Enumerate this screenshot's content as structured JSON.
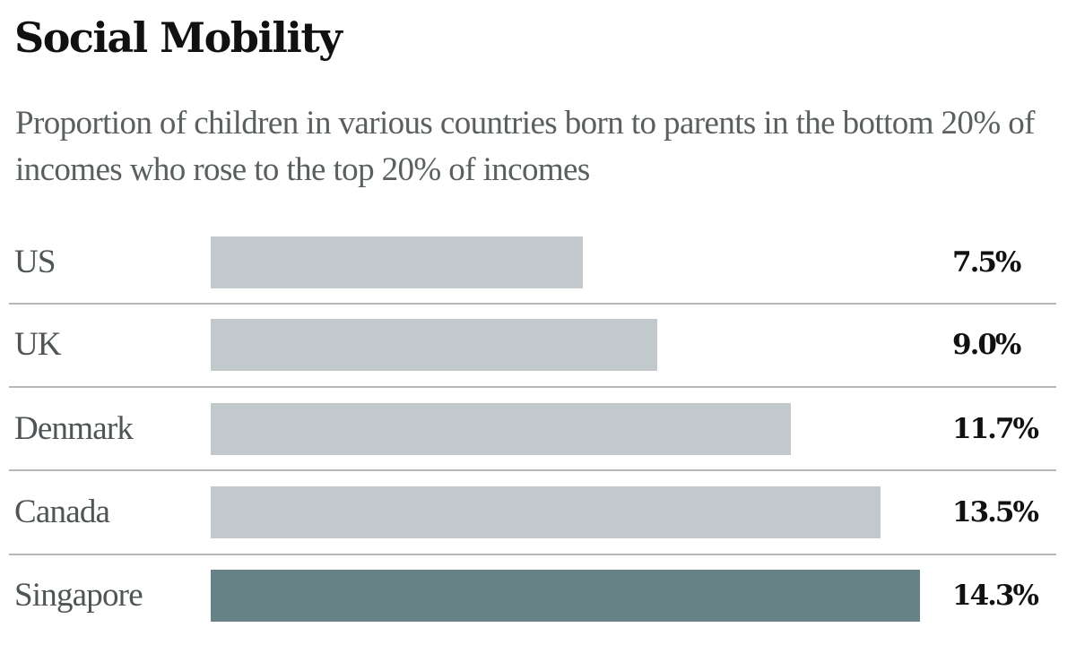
{
  "header": {
    "title": "Social Mobility",
    "subtitle": "Proportion of children in various countries born to parents in the bottom 20% of incomes who rose to the top 20% of incomes"
  },
  "colors": {
    "bar_default": "#c1c9cc",
    "bar_highlight": "#668287",
    "divider": "#b4b8b9",
    "label_text": "#4f5556",
    "value_text": "#111111",
    "title_text": "#111111"
  },
  "rows": [
    {
      "label": "US",
      "value_label": "7.5%"
    },
    {
      "label": "UK",
      "value_label": "9.0%"
    },
    {
      "label": "Denmark",
      "value_label": "11.7%"
    },
    {
      "label": "Canada",
      "value_label": "13.5%"
    },
    {
      "label": "Singapore",
      "value_label": "14.3%"
    }
  ],
  "chart_data": {
    "type": "bar",
    "orientation": "horizontal",
    "title": "Social Mobility",
    "subtitle": "Proportion of children in various countries born to parents in the bottom 20% of incomes who rose to the top 20% of incomes",
    "categories": [
      "US",
      "UK",
      "Denmark",
      "Canada",
      "Singapore"
    ],
    "values": [
      7.5,
      9.0,
      11.7,
      13.5,
      14.3
    ],
    "value_labels": [
      "7.5%",
      "9.0%",
      "11.7%",
      "13.5%",
      "14.3%"
    ],
    "unit": "%",
    "highlighted_category": "Singapore",
    "xlabel": "",
    "ylabel": "",
    "grid": false,
    "legend": null,
    "xlim": [
      0,
      14.3
    ]
  }
}
